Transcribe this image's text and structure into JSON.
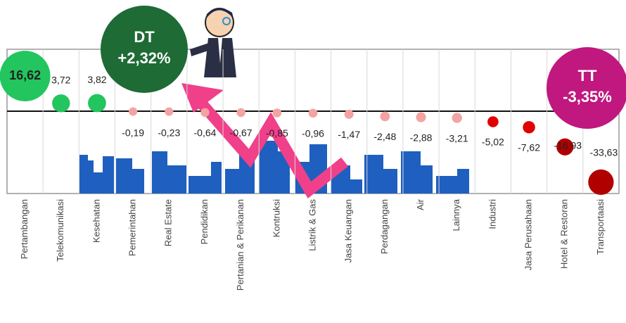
{
  "chart_data": {
    "type": "bubble",
    "categories": [
      "Pertambangan",
      "Telekomunikasi",
      "Kesehatan",
      "Pemerintahan",
      "Real Estate",
      "Pendidikan",
      "Pertanian & Perikanan",
      "Kontruksi",
      "Listrik & Gas",
      "Jasa Keuangan",
      "Perdagangan",
      "Air",
      "Lainnya",
      "Industri",
      "Jasa Perusahaan",
      "Hotel & Restoran",
      "Transportaasi"
    ],
    "values": [
      16.62,
      3.72,
      3.82,
      -0.19,
      -0.23,
      -0.64,
      -0.67,
      -0.85,
      -0.96,
      -1.47,
      -2.48,
      -2.88,
      -3.21,
      -5.02,
      -7.62,
      -16.93,
      -33.63
    ],
    "value_labels": [
      "16,62",
      "3,72",
      "3,82",
      "-0,19",
      "-0,23",
      "-0,64",
      "-0,67",
      "-0,85",
      "-0,96",
      "-1,47",
      "-2,48",
      "-2,88",
      "-3,21",
      "-5,02",
      "-7,62",
      "-16,93",
      "-33,63"
    ],
    "colors": [
      "#22c55e",
      "#22c55e",
      "#22c55e",
      "#f4a3a3",
      "#f4a3a3",
      "#f4a3a3",
      "#f4a3a3",
      "#f4a3a3",
      "#f4a3a3",
      "#f4a3a3",
      "#f4a3a3",
      "#f4a3a3",
      "#f4a3a3",
      "#e00000",
      "#e00000",
      "#b00000",
      "#b00000"
    ],
    "ylim": [
      -39,
      29.3
    ],
    "annotations": [
      {
        "title": "DT",
        "text": "+2,32%",
        "color": "#1e6b35"
      },
      {
        "title": "TT",
        "text": "-3,35%",
        "color": "#c0187f"
      }
    ]
  }
}
